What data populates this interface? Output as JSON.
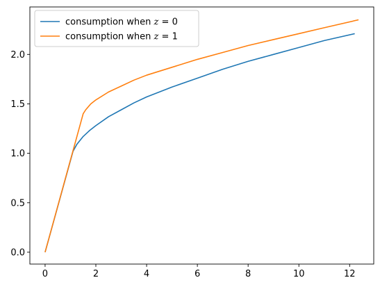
{
  "chart_data": {
    "type": "line",
    "title": "",
    "xlabel": "",
    "ylabel": "",
    "xlim": [
      -0.6,
      12.95
    ],
    "ylim": [
      -0.12,
      2.48
    ],
    "x_ticks": [
      0,
      2,
      4,
      6,
      8,
      10,
      12
    ],
    "x_tick_labels": [
      "0",
      "2",
      "4",
      "6",
      "8",
      "10",
      "12"
    ],
    "y_ticks": [
      0.0,
      0.5,
      1.0,
      1.5,
      2.0
    ],
    "y_tick_labels": [
      "0.0",
      "0.5",
      "1.0",
      "1.5",
      "2.0"
    ],
    "grid": false,
    "legend_position": "upper-left",
    "series": [
      {
        "name": "consumption when z = 0",
        "legend_prefix": "consumption when ",
        "legend_math": "z",
        "legend_suffix": " = 0",
        "color": "#1f77b4",
        "x": [
          0,
          1.1,
          1.25,
          1.5,
          1.75,
          2,
          2.5,
          3,
          3.5,
          4,
          5,
          6,
          7,
          8,
          9,
          10,
          11,
          12.2
        ],
        "y": [
          0,
          1.02,
          1.09,
          1.17,
          1.23,
          1.28,
          1.37,
          1.44,
          1.51,
          1.57,
          1.67,
          1.76,
          1.85,
          1.93,
          2.0,
          2.07,
          2.14,
          2.21
        ]
      },
      {
        "name": "consumption when z = 1",
        "legend_prefix": "consumption when ",
        "legend_math": "z",
        "legend_suffix": " = 1",
        "color": "#ff7f0e",
        "x": [
          0,
          1.5,
          1.6,
          1.8,
          2,
          2.5,
          3,
          3.5,
          4,
          5,
          6,
          7,
          8,
          9,
          10,
          11,
          12.35
        ],
        "y": [
          0,
          1.4,
          1.44,
          1.5,
          1.54,
          1.62,
          1.68,
          1.74,
          1.79,
          1.87,
          1.95,
          2.02,
          2.09,
          2.15,
          2.21,
          2.27,
          2.35
        ]
      }
    ]
  }
}
